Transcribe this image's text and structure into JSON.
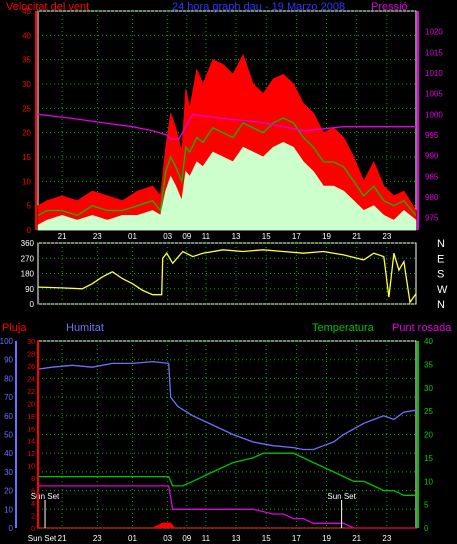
{
  "colors": {
    "wind": "#ff0000",
    "humidity": "#6f6fff",
    "temperature": "#00d000",
    "dewpoint": "#e000e0",
    "pressure": "#e000e0",
    "direction": "#ffff33",
    "rain": "#ff0000",
    "axis": "#ffffff",
    "grid": "#00b000",
    "sunset": "#ffffff"
  },
  "chart_data": [
    {
      "type": "line",
      "title": "Velocitat del vent",
      "subtitle": "24 hora graph dau - 19 Marzo 2008",
      "right_title": "Pressió",
      "ylim_left": [
        0,
        45
      ],
      "y_ticks_left": [
        "0",
        "5",
        "10",
        "15",
        "20",
        "25",
        "30",
        "35",
        "40",
        "45"
      ],
      "ylim_right": [
        972,
        1025
      ],
      "y_ticks_right": [
        "975",
        "980",
        "985",
        "990",
        "995",
        "1000",
        "1005",
        "1010",
        "1015",
        "1020"
      ],
      "x_ticks": [
        "21",
        "23",
        "01",
        "03",
        "09",
        "11",
        "13",
        "15",
        "17",
        "19",
        "21",
        "23"
      ],
      "x_hours": [
        0,
        3.5,
        7,
        10.5,
        12.4,
        14.3,
        17.3,
        20.3,
        23.3,
        26.3,
        29.3,
        32.3
      ],
      "x_range": [
        -2.4,
        35.2
      ],
      "grid": true,
      "series": [
        {
          "key": "gust",
          "color": "#ff0000",
          "fill": true,
          "x": [
            -2.4,
            -1.5,
            0,
            1.5,
            3,
            4.5,
            6,
            7.5,
            9,
            9.8,
            10.3,
            10.8,
            11.3,
            11.9,
            12.3,
            12.7,
            13.4,
            14,
            15,
            16,
            17,
            18,
            19,
            20,
            21,
            22,
            23,
            24,
            25,
            26,
            27,
            28,
            29,
            30,
            31,
            32,
            33,
            34,
            35.2
          ],
          "y": [
            5,
            6,
            7,
            6,
            8,
            7,
            6,
            8,
            9,
            7,
            17,
            24,
            21,
            16,
            29,
            25,
            33,
            30,
            35,
            34,
            32,
            36,
            30,
            28,
            31,
            32,
            30,
            26,
            24,
            20,
            21,
            19,
            15,
            10,
            14,
            9,
            7,
            8,
            4
          ]
        },
        {
          "key": "wind",
          "color": "#00c000",
          "fill": false,
          "x": [
            -2.4,
            -1.5,
            0,
            1.5,
            3,
            4.5,
            6,
            7.5,
            9,
            9.8,
            10.3,
            10.8,
            11.3,
            11.9,
            12.3,
            12.7,
            13.4,
            14,
            15,
            16,
            17,
            18,
            19,
            20,
            21,
            22,
            23,
            24,
            25,
            26,
            27,
            28,
            29,
            30,
            31,
            32,
            33,
            34,
            35.2
          ],
          "y": [
            3,
            4,
            4,
            3,
            5,
            4,
            4,
            5,
            6,
            4,
            12,
            15,
            13,
            10,
            17,
            16,
            19,
            18,
            21,
            20,
            19,
            22,
            21,
            20,
            22,
            23,
            22,
            19,
            17,
            14,
            14,
            13,
            10,
            7,
            9,
            6,
            5,
            6,
            3
          ]
        },
        {
          "key": "average",
          "color": "#ccffcc",
          "fill": true,
          "x": [
            -2.4,
            -1.5,
            0,
            1.5,
            3,
            4.5,
            6,
            7.5,
            9,
            9.8,
            10.3,
            10.8,
            11.3,
            11.9,
            12.3,
            12.7,
            13.4,
            14,
            15,
            16,
            17,
            18,
            19,
            20,
            21,
            22,
            23,
            24,
            25,
            26,
            27,
            28,
            29,
            30,
            31,
            32,
            33,
            34,
            35.2
          ],
          "y": [
            1,
            2,
            3,
            2,
            3,
            2,
            3,
            3,
            4,
            3,
            8,
            11,
            9,
            6,
            12,
            11,
            14,
            13,
            16,
            15,
            14,
            17,
            16,
            15,
            17,
            18,
            17,
            14,
            12,
            9,
            9,
            8,
            6,
            4,
            5,
            3,
            2,
            4,
            2
          ]
        },
        {
          "key": "pressure",
          "color": "#e000e0",
          "axis": "right",
          "fill": false,
          "x": [
            -2.4,
            1,
            4,
            7,
            9,
            10.4,
            10.8,
            11.6,
            13,
            16,
            20,
            24,
            28,
            30,
            33,
            35.2
          ],
          "y": [
            1000,
            999,
            998,
            997,
            996,
            995,
            994,
            994,
            1000,
            999,
            998,
            996,
            997,
            997,
            997,
            997
          ]
        }
      ]
    },
    {
      "type": "line",
      "title": "",
      "ylim": [
        0,
        360
      ],
      "y_ticks": [
        "0",
        "90",
        "180",
        "270",
        "360"
      ],
      "y_labels_right": [
        "N",
        "W",
        "S",
        "E",
        "N"
      ],
      "x_range": [
        -2.4,
        35.2
      ],
      "series": [
        {
          "key": "direction",
          "color": "#ffff33",
          "x": [
            -2.4,
            0,
            2,
            3,
            4,
            5,
            6,
            7,
            8,
            9,
            9.9,
            10,
            10.4,
            11,
            12,
            13,
            14,
            16,
            18,
            20,
            22,
            24,
            26,
            28,
            30,
            31,
            32,
            32.5,
            33,
            33.5,
            34,
            34.6,
            35.2
          ],
          "y": [
            100,
            95,
            90,
            120,
            160,
            190,
            150,
            120,
            80,
            55,
            55,
            270,
            300,
            240,
            310,
            280,
            300,
            320,
            310,
            320,
            310,
            300,
            310,
            290,
            260,
            300,
            280,
            40,
            300,
            200,
            250,
            10,
            60
          ]
        }
      ]
    },
    {
      "type": "line",
      "title": "Humitat",
      "titles": {
        "rain": "Pluja",
        "humidity": "Humitat",
        "temperature": "Temperatura",
        "dewpoint": "Punt rosada"
      },
      "ylim_humidity": [
        0,
        100
      ],
      "y_ticks_humidity": [
        "0",
        "10",
        "20",
        "30",
        "40",
        "50",
        "60",
        "70",
        "80",
        "90",
        "100"
      ],
      "ylim_rain": [
        0,
        30
      ],
      "y_ticks_rain": [
        "0",
        "2",
        "4",
        "6",
        "8",
        "10",
        "12",
        "14",
        "16",
        "18",
        "20",
        "22",
        "24",
        "26",
        "28",
        "30"
      ],
      "ylim_temperature": [
        0,
        40
      ],
      "y_ticks_temperature": [
        "0",
        "5",
        "10",
        "15",
        "20",
        "25",
        "30",
        "35",
        "40"
      ],
      "x_ticks": [
        "Sun Set",
        "21",
        "23",
        "01",
        "03",
        "09",
        "11",
        "13",
        "15",
        "17",
        "19",
        "21",
        "23"
      ],
      "x_hours": [
        -2.0,
        0,
        3.5,
        7,
        10.5,
        12.4,
        14.3,
        17.3,
        20.3,
        23.3,
        26.3,
        29.3,
        32.3
      ],
      "x_range": [
        -2.4,
        35.2
      ],
      "annotations": [
        {
          "text": "Sun Set",
          "x": -1.7
        },
        {
          "text": "Sun Set",
          "x": 27.8
        }
      ],
      "series": [
        {
          "key": "humidity",
          "color": "#6f6fff",
          "axis": "humidity",
          "x": [
            -2.4,
            -1,
            1,
            3,
            5,
            7,
            9,
            10.6,
            10.8,
            11.5,
            13,
            15,
            17,
            19,
            21,
            23,
            24,
            25,
            26,
            27,
            28,
            29,
            30,
            31,
            32,
            33,
            34,
            35.2
          ],
          "y": [
            85,
            86,
            87,
            86,
            88,
            88,
            89,
            88,
            70,
            65,
            60,
            55,
            50,
            46,
            44,
            43,
            42,
            42,
            44,
            46,
            50,
            53,
            56,
            58,
            60,
            58,
            62,
            63
          ]
        },
        {
          "key": "temperature",
          "color": "#00c000",
          "axis": "temperature",
          "x": [
            -2.4,
            1,
            3,
            5,
            7,
            9,
            10.6,
            11,
            12,
            13,
            15,
            17,
            19,
            20,
            21,
            22,
            23,
            24,
            25,
            26,
            27,
            28,
            29,
            30,
            31,
            32,
            33,
            34,
            35.2
          ],
          "y": [
            11,
            11,
            11,
            11,
            11,
            11,
            11,
            9,
            9,
            10,
            12,
            14,
            15,
            16,
            16,
            16,
            16,
            15,
            14,
            13,
            12,
            11,
            10,
            10,
            9,
            8,
            8,
            7,
            7
          ]
        },
        {
          "key": "dewpoint",
          "color": "#e000e0",
          "axis": "temperature",
          "x": [
            -2.4,
            0,
            2,
            4,
            6,
            8,
            10,
            10.6,
            11,
            13,
            15,
            17,
            19,
            21,
            22,
            23,
            24,
            25,
            26,
            27,
            28,
            29,
            30,
            31,
            32,
            33,
            34,
            35.2
          ],
          "y": [
            9,
            9,
            9,
            9,
            9,
            9,
            9,
            9,
            4,
            4,
            4,
            4,
            4,
            3,
            3,
            2,
            2,
            1,
            1,
            1,
            1,
            0,
            0,
            0,
            0,
            0,
            0,
            0
          ]
        },
        {
          "key": "rain",
          "color": "#ff0000",
          "axis": "rain",
          "x": [
            -2.4,
            7,
            9,
            10,
            10.8,
            11.2,
            35.2
          ],
          "y": [
            0,
            0,
            0,
            0.8,
            0.8,
            0,
            0
          ]
        }
      ]
    }
  ]
}
